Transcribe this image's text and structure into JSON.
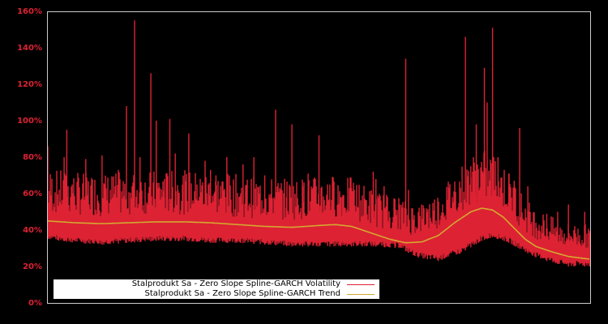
{
  "chart_data": {
    "type": "line",
    "title": "",
    "xlabel": "",
    "ylabel": "",
    "ylim": [
      0,
      160
    ],
    "y_ticks": [
      "0%",
      "20%",
      "40%",
      "60%",
      "80%",
      "100%",
      "120%",
      "140%",
      "160%"
    ],
    "y_tick_values": [
      0,
      20,
      40,
      60,
      80,
      100,
      120,
      140,
      160
    ],
    "grid": false,
    "legend_position": "lower-left inside plot",
    "background": "#000000",
    "frame_color": "#cccccc",
    "tick_color": "#dd2233",
    "x_positions_note": "x is normalized position 0..1 across the plot width (no x-axis labels shown)",
    "series": [
      {
        "name": "Stalprodukt Sa - Zero Slope Spline-GARCH Volatility",
        "color": "#dd2233",
        "baseline": {
          "x": [
            0.0,
            0.05,
            0.1,
            0.15,
            0.2,
            0.25,
            0.3,
            0.35,
            0.4,
            0.45,
            0.5,
            0.55,
            0.6,
            0.65,
            0.68,
            0.72,
            0.76,
            0.8,
            0.82,
            0.85,
            0.88,
            0.9,
            0.93,
            0.96,
            1.0
          ],
          "values": [
            35,
            33,
            32,
            33,
            34,
            34,
            33,
            33,
            32,
            31,
            31,
            31,
            31,
            30,
            25,
            23,
            27,
            34,
            36,
            33,
            28,
            25,
            22,
            20,
            20
          ]
        },
        "spikes": {
          "x": [
            0.0,
            0.02,
            0.03,
            0.035,
            0.045,
            0.07,
            0.1,
            0.13,
            0.145,
            0.16,
            0.17,
            0.19,
            0.2,
            0.215,
            0.225,
            0.235,
            0.24,
            0.26,
            0.275,
            0.29,
            0.3,
            0.31,
            0.33,
            0.36,
            0.38,
            0.4,
            0.42,
            0.44,
            0.45,
            0.47,
            0.48,
            0.5,
            0.52,
            0.54,
            0.56,
            0.58,
            0.6,
            0.605,
            0.62,
            0.64,
            0.66,
            0.665,
            0.7,
            0.72,
            0.76,
            0.77,
            0.78,
            0.79,
            0.8,
            0.805,
            0.81,
            0.82,
            0.83,
            0.85,
            0.86,
            0.87,
            0.885,
            0.9,
            0.92,
            0.94,
            0.96,
            0.97,
            0.99,
            1.0
          ],
          "values": [
            86,
            50,
            80,
            95,
            65,
            79,
            81,
            73,
            108,
            155,
            80,
            126,
            100,
            68,
            101,
            82,
            62,
            93,
            65,
            78,
            73,
            70,
            80,
            76,
            80,
            70,
            106,
            58,
            98,
            64,
            71,
            92,
            65,
            58,
            63,
            59,
            72,
            68,
            64,
            57,
            134,
            62,
            50,
            46,
            55,
            146,
            75,
            98,
            68,
            129,
            110,
            151,
            80,
            71,
            67,
            96,
            64,
            44,
            49,
            50,
            54,
            40,
            50,
            32
          ]
        }
      },
      {
        "name": "Stalprodukt Sa - Zero Slope Spline-GARCH Trend",
        "color": "#d4a830",
        "x": [
          0.0,
          0.05,
          0.1,
          0.15,
          0.2,
          0.25,
          0.3,
          0.35,
          0.4,
          0.45,
          0.5,
          0.53,
          0.56,
          0.6,
          0.63,
          0.66,
          0.69,
          0.72,
          0.75,
          0.78,
          0.8,
          0.82,
          0.84,
          0.86,
          0.88,
          0.9,
          0.93,
          0.96,
          1.0
        ],
        "values": [
          45,
          44,
          43.5,
          44,
          44.5,
          44.5,
          44,
          43,
          42,
          41.5,
          42.5,
          43,
          42,
          38,
          35,
          33,
          33.5,
          37,
          44,
          50,
          52,
          51,
          47,
          41,
          35,
          31,
          28,
          25.5,
          24
        ]
      }
    ]
  },
  "legend": {
    "items": [
      {
        "label": "Stalprodukt Sa - Zero Slope Spline-GARCH Volatility",
        "color": "#dd2233"
      },
      {
        "label": "Stalprodukt Sa - Zero Slope Spline-GARCH Trend",
        "color": "#d4a830"
      }
    ]
  }
}
